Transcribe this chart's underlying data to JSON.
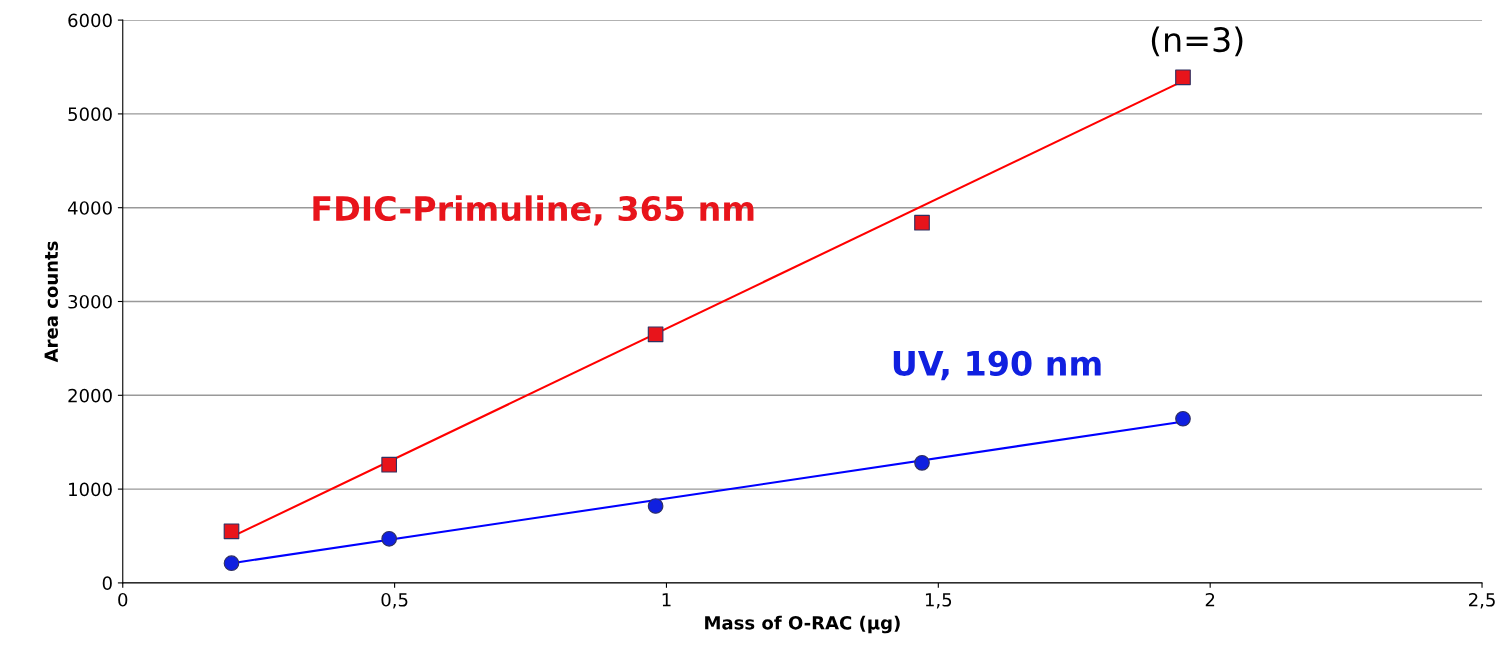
{
  "chart_data": {
    "type": "scatter",
    "xlabel": "Mass of O-RAC (µg)",
    "ylabel": "Area counts",
    "xlim": [
      0,
      2.5
    ],
    "xticks": [
      0,
      {
        "value": 0.5,
        "label": "0,5"
      },
      1,
      {
        "value": 1.5,
        "label": "1,5"
      },
      2,
      {
        "value": 2.5,
        "label": "2,5"
      }
    ],
    "ylim": [
      0,
      6000
    ],
    "yticks": [
      0,
      1000,
      2000,
      3000,
      4000,
      5000,
      6000
    ],
    "grid": "y",
    "legend": false,
    "annotations": [
      "(n=3)"
    ],
    "series": [
      {
        "name": "FDIC-Primuline, 365 nm",
        "marker": "square",
        "color": "#e8141b",
        "x": [
          0.2,
          0.49,
          0.98,
          1.47,
          1.95
        ],
        "values": [
          550,
          1260,
          2650,
          3840,
          5390
        ]
      },
      {
        "name": "UV, 190 nm",
        "marker": "circle",
        "color": "#1020e0",
        "x": [
          0.2,
          0.49,
          0.98,
          1.47,
          1.95
        ],
        "values": [
          210,
          470,
          820,
          1280,
          1750
        ]
      },
      {
        "type": "line",
        "color": "#ff0000",
        "x": [
          0.2,
          1.95
        ],
        "values": [
          490,
          5350
        ]
      },
      {
        "type": "line",
        "color": "#0000ff",
        "x": [
          0.2,
          1.95
        ],
        "values": [
          210,
          1720
        ]
      }
    ]
  }
}
